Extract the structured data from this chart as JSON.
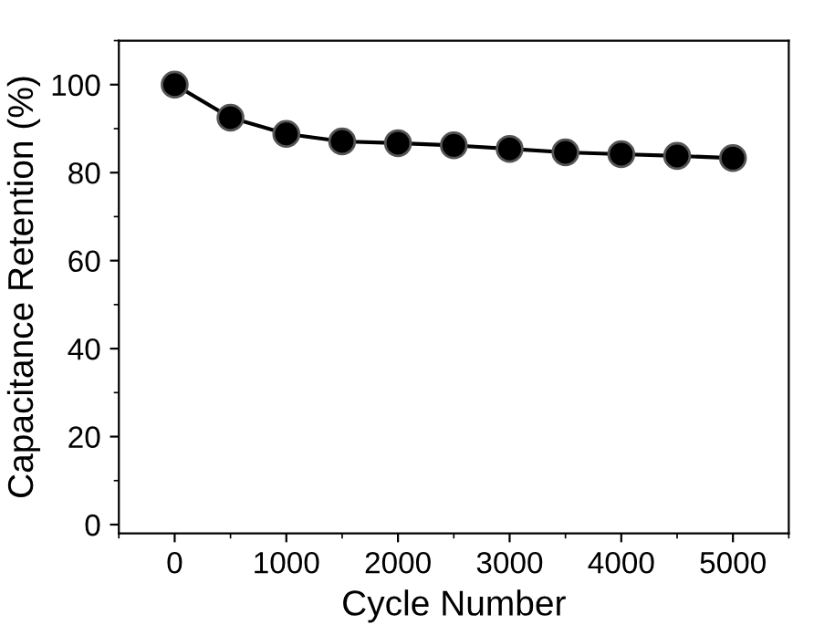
{
  "chart_data": {
    "type": "line",
    "xlabel": "Cycle Number",
    "ylabel": "Capacitance Retention (%)",
    "x": [
      0,
      500,
      1000,
      1500,
      2000,
      2500,
      3000,
      3500,
      4000,
      4500,
      5000
    ],
    "series": [
      {
        "color": "#000000",
        "values": [
          100,
          92.5,
          88.8,
          87.1,
          86.7,
          86.2,
          85.4,
          84.6,
          84.2,
          83.8,
          83.3
        ]
      }
    ],
    "xlim": [
      -500,
      5500
    ],
    "ylim": [
      -2,
      110
    ],
    "xticks": [
      0,
      1000,
      2000,
      3000,
      4000,
      5000
    ],
    "yticks": [
      0,
      20,
      40,
      60,
      80,
      100
    ],
    "marker": "circle",
    "line_style": "solid",
    "grid": false,
    "legend": false
  }
}
